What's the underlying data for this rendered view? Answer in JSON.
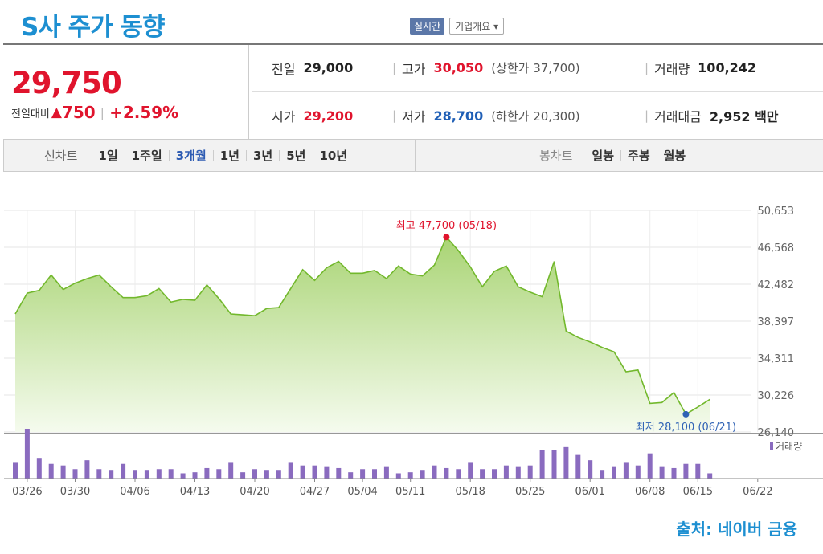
{
  "header": {
    "title": "S사 주가 동향",
    "realtime_label": "실시간",
    "company_label": "기업개요 ▾"
  },
  "summary": {
    "price": "29,750",
    "change_label": "전일대비",
    "change_symbol": "▲",
    "change_value": "750",
    "change_pct": "+2.59%",
    "prev_label": "전일",
    "prev_value": "29,000",
    "open_label": "시가",
    "open_value": "29,200",
    "high_label": "고가",
    "high_value": "30,050",
    "upper_limit": "(상한가 37,700)",
    "low_label": "저가",
    "low_value": "28,700",
    "lower_limit": "(하한가 20,300)",
    "volume_label": "거래량",
    "volume_value": "100,242",
    "amount_label": "거래대금",
    "amount_value": "2,952 백만"
  },
  "periods": {
    "line_title": "선차트",
    "line_items": [
      "1일",
      "1주일",
      "3개월",
      "1년",
      "3년",
      "5년",
      "10년"
    ],
    "active": "3개월",
    "candle_title": "봉차트",
    "candle_items": [
      "일봉",
      "주봉",
      "월봉"
    ]
  },
  "chart_data": {
    "type": "area",
    "y_ticks": [
      "50,653",
      "46,568",
      "42,482",
      "38,397",
      "34,311",
      "30,226",
      "26,140"
    ],
    "ylim": [
      26140,
      50653
    ],
    "x_tick_labels": [
      "03/26",
      "03/30",
      "04/06",
      "04/13",
      "04/20",
      "04/27",
      "05/04",
      "05/11",
      "05/18",
      "05/25",
      "06/01",
      "06/08",
      "06/15",
      "06/22"
    ],
    "x_tick_index": [
      1,
      5,
      10,
      15,
      20,
      25,
      29,
      33,
      38,
      43,
      48,
      53,
      57,
      62
    ],
    "price_series": [
      39200,
      41500,
      41800,
      43500,
      41900,
      42600,
      43100,
      43500,
      42200,
      41000,
      41000,
      41200,
      42000,
      40500,
      40800,
      40700,
      42400,
      40900,
      39200,
      39100,
      39000,
      39800,
      39900,
      42000,
      44100,
      42900,
      44300,
      45000,
      43700,
      43700,
      44000,
      43100,
      44500,
      43600,
      43400,
      44600,
      47700,
      46200,
      44400,
      42200,
      43900,
      44500,
      42200,
      41600,
      41100,
      45000,
      37300,
      36600,
      36100,
      35500,
      35000,
      32800,
      33000,
      29300,
      29400,
      30500,
      28100,
      28900,
      29750
    ],
    "high_label": "최고 47,700 (05/18)",
    "high_index": 36,
    "low_label": "최저 28,100 (06/21)",
    "low_index": 56,
    "volume_label": "거래량",
    "volume_series": [
      30,
      95,
      38,
      28,
      25,
      18,
      35,
      18,
      15,
      28,
      15,
      15,
      18,
      18,
      10,
      12,
      20,
      18,
      30,
      12,
      18,
      15,
      15,
      30,
      25,
      25,
      22,
      20,
      12,
      18,
      18,
      22,
      10,
      12,
      15,
      25,
      20,
      18,
      30,
      18,
      18,
      25,
      22,
      25,
      55,
      55,
      60,
      45,
      35,
      15,
      22,
      30,
      25,
      48,
      22,
      20,
      28,
      28,
      10
    ],
    "colors": {
      "line": "#72b82c",
      "fill_top": "#a9d474",
      "fill_bottom": "#f5fbee",
      "volume": "#8a6bbf",
      "high": "#e0142d",
      "low": "#2f62b5"
    }
  },
  "source": "출처: 네이버 금융"
}
